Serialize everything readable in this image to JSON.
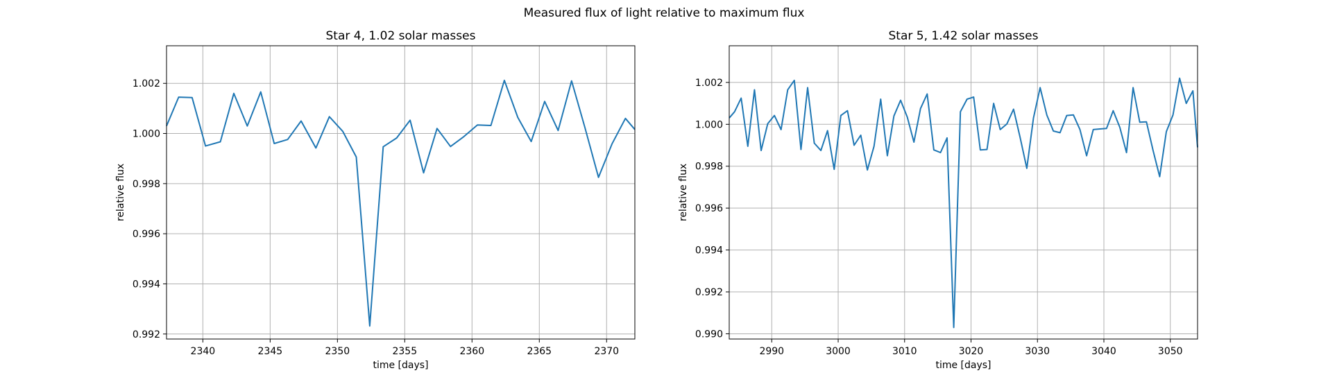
{
  "figure": {
    "suptitle": "Measured flux of light relative to maximum flux"
  },
  "colors": {
    "series": "#1f77b4",
    "grid": "#b0b0b0",
    "axes": "#000000"
  },
  "chart_data": [
    {
      "type": "line",
      "title": "Star 4, 1.02 solar masses",
      "xlabel": "time [days]",
      "ylabel": "relative flux",
      "xlim": [
        2337.3,
        2372.1
      ],
      "ylim": [
        0.9918,
        1.0035
      ],
      "xticks": [
        2340,
        2345,
        2350,
        2355,
        2360,
        2365,
        2370
      ],
      "yticks": [
        0.992,
        0.994,
        0.996,
        0.998,
        1.0,
        1.002
      ],
      "ytick_labels": [
        "0.992",
        "0.994",
        "0.996",
        "0.998",
        "1.000",
        "1.002"
      ],
      "grid": true,
      "x": [
        2337.3,
        2338.2,
        2339.2,
        2340.2,
        2341.3,
        2342.3,
        2343.3,
        2344.3,
        2345.3,
        2346.3,
        2347.3,
        2348.4,
        2349.4,
        2350.4,
        2351.4,
        2352.4,
        2353.4,
        2354.4,
        2355.4,
        2356.4,
        2357.4,
        2358.4,
        2359.4,
        2360.4,
        2361.4,
        2362.4,
        2363.4,
        2364.4,
        2365.4,
        2366.4,
        2367.4,
        2368.4,
        2369.4,
        2370.4,
        2371.4,
        2372.1
      ],
      "values": [
        1.0003,
        1.00145,
        1.00143,
        0.9995,
        0.99967,
        1.0016,
        1.0003,
        1.00166,
        0.9996,
        0.99976,
        1.0005,
        0.99942,
        1.00067,
        1.00008,
        0.99906,
        0.99232,
        0.99947,
        0.99982,
        1.00053,
        0.99843,
        1.0002,
        0.99948,
        0.99988,
        1.00034,
        1.00032,
        1.00212,
        1.00064,
        0.99968,
        1.00128,
        1.00012,
        1.0021,
        1.00022,
        0.99825,
        0.99958,
        1.0006,
        1.00016
      ]
    },
    {
      "type": "line",
      "title": "Star 5, 1.42 solar masses",
      "xlabel": "time [days]",
      "ylabel": "relative flux",
      "xlim": [
        2983.6,
        3054.1
      ],
      "ylim": [
        0.98975,
        1.00375
      ],
      "xticks": [
        2990,
        3000,
        3010,
        3020,
        3030,
        3040,
        3050
      ],
      "yticks": [
        0.99,
        0.992,
        0.994,
        0.996,
        0.998,
        1.0,
        1.002
      ],
      "ytick_labels": [
        "0.990",
        "0.992",
        "0.994",
        "0.996",
        "0.998",
        "1.000",
        "1.002"
      ],
      "grid": true,
      "x": [
        2983.6,
        2984.4,
        2985.4,
        2986.4,
        2987.4,
        2988.4,
        2989.4,
        2990.4,
        2991.4,
        2992.4,
        2993.4,
        2994.4,
        2995.4,
        2996.4,
        2997.4,
        2998.4,
        2999.4,
        3000.4,
        3001.4,
        3002.4,
        3003.4,
        3004.4,
        3005.4,
        3006.4,
        3007.4,
        3008.4,
        3009.4,
        3010.4,
        3011.4,
        3012.4,
        3013.4,
        3014.4,
        3015.4,
        3016.4,
        3017.4,
        3018.4,
        3019.4,
        3020.4,
        3021.4,
        3022.4,
        3023.4,
        3024.4,
        3025.4,
        3026.4,
        3027.4,
        3028.4,
        3029.4,
        3030.4,
        3031.4,
        3032.4,
        3033.4,
        3034.4,
        3035.4,
        3036.4,
        3037.4,
        3038.4,
        3039.4,
        3040.4,
        3041.4,
        3042.4,
        3043.4,
        3044.4,
        3045.4,
        3046.4,
        3047.4,
        3048.4,
        3049.4,
        3050.4,
        3051.4,
        3052.4,
        3053.4,
        3054.1
      ],
      "values": [
        1.0003,
        1.0006,
        1.00125,
        0.99895,
        1.00165,
        0.99875,
        1.00003,
        1.00042,
        0.99975,
        1.00165,
        1.0021,
        0.9988,
        1.00175,
        0.9991,
        0.99875,
        0.9997,
        0.99785,
        1.00042,
        1.00065,
        0.999,
        0.99948,
        0.99782,
        0.99895,
        1.0012,
        0.9985,
        1.0004,
        1.00115,
        1.00035,
        0.99915,
        1.00075,
        1.00145,
        0.99878,
        0.99865,
        0.99935,
        0.9903,
        1.0006,
        1.0012,
        1.0013,
        0.99878,
        0.9988,
        1.001,
        0.99975,
        1.00002,
        1.00072,
        0.99935,
        0.9979,
        1.0003,
        1.00175,
        1.00045,
        0.99968,
        0.9996,
        1.00042,
        1.00045,
        0.99975,
        0.9985,
        0.99975,
        0.99978,
        0.9998,
        1.00065,
        0.99985,
        0.99865,
        1.00175,
        1.0001,
        1.00012,
        0.99875,
        0.9975,
        0.99965,
        1.00045,
        1.0022,
        1.001,
        1.0016,
        0.9989
      ]
    }
  ]
}
